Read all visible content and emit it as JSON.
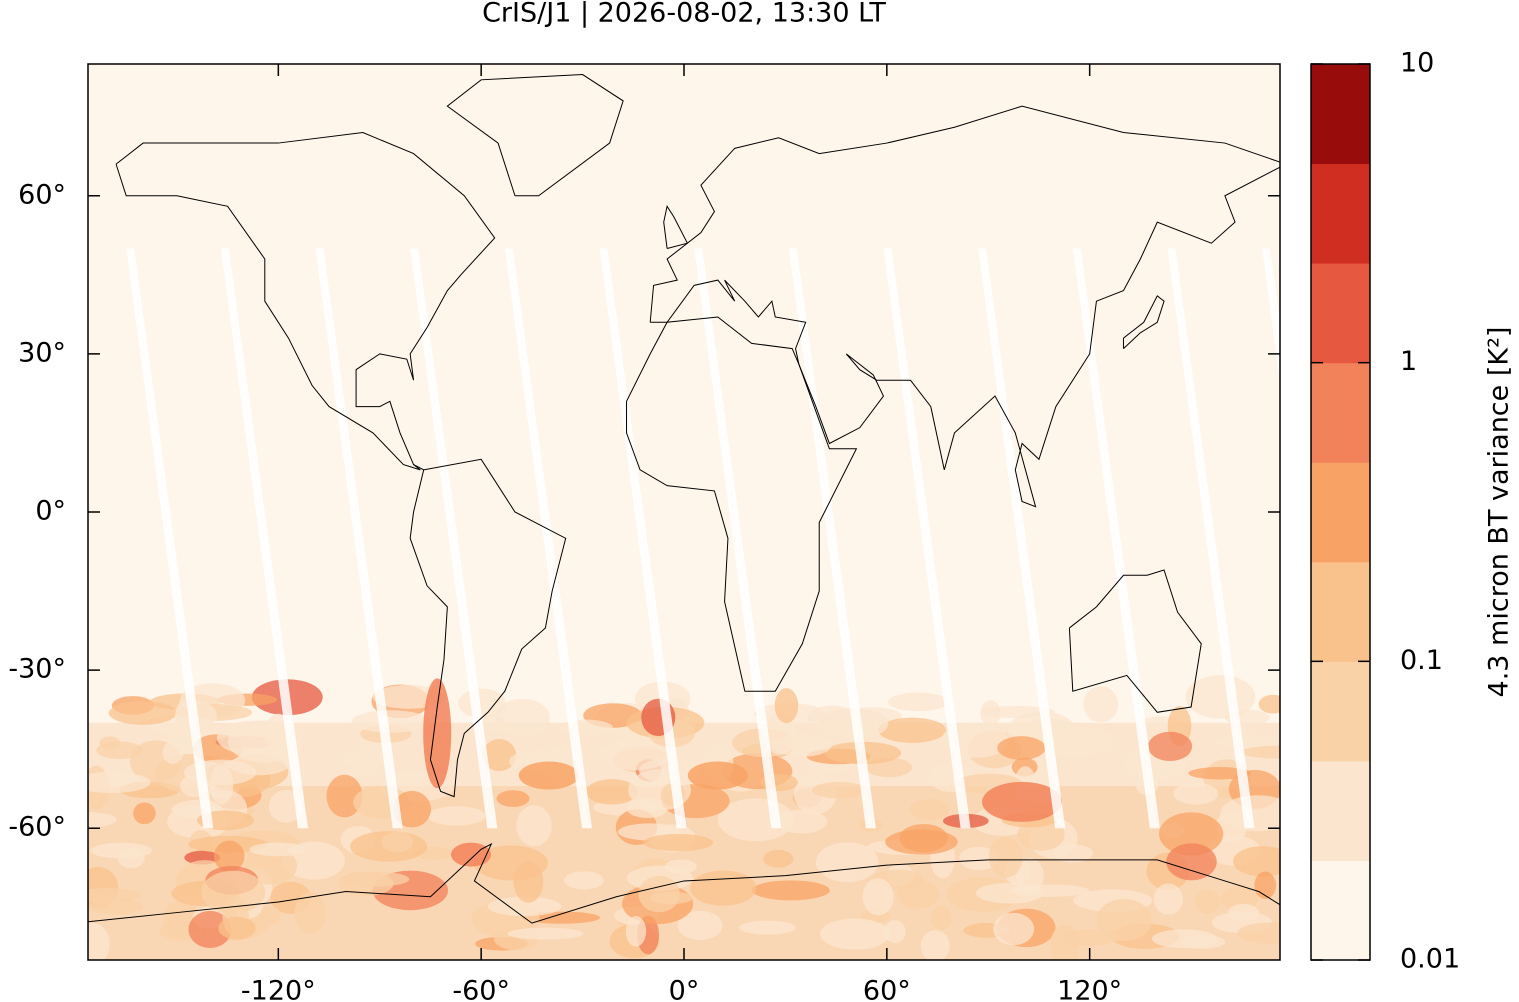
{
  "chart_data": {
    "type": "map",
    "title": "CrIS/J1 | 2026-08-02, 13:30 LT",
    "xlim": [
      -176.3,
      176.3
    ],
    "ylim": [
      -85,
      85
    ],
    "xticks": [
      {
        "value": -120,
        "label": "-120°"
      },
      {
        "value": -60,
        "label": "-60°"
      },
      {
        "value": 0,
        "label": "0°"
      },
      {
        "value": 60,
        "label": "60°"
      },
      {
        "value": 120,
        "label": "120°"
      }
    ],
    "yticks": [
      {
        "value": -60,
        "label": "-60°"
      },
      {
        "value": -30,
        "label": "-30°"
      },
      {
        "value": 0,
        "label": "0°"
      },
      {
        "value": 30,
        "label": "30°"
      },
      {
        "value": 60,
        "label": "60°"
      }
    ],
    "colorbar": {
      "label": "4.3 micron BT variance [K²]",
      "scale": "log",
      "lim": [
        0.01,
        10
      ],
      "ticks": [
        0.01,
        0.1,
        1,
        10
      ],
      "colors": [
        "#fef5eb",
        "#fbe5cf",
        "#f9d2a8",
        "#f9c28c",
        "#f8a365",
        "#f2825a",
        "#e6583f",
        "#d12e22",
        "#990c0c"
      ]
    }
  }
}
